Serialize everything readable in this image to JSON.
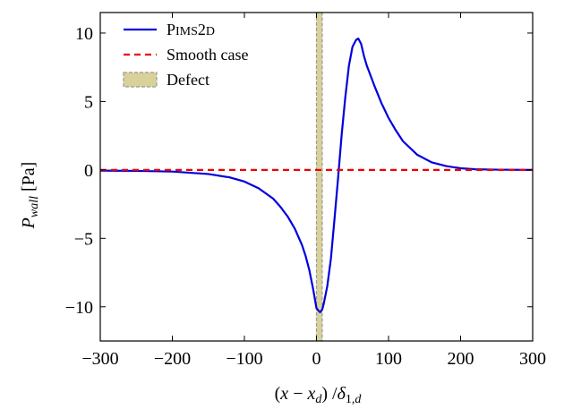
{
  "chart_data": {
    "type": "line",
    "xlabel": "(x − x_d) / δ_1,d",
    "ylabel": "P_wall [Pa]",
    "xlim": [
      -300,
      300
    ],
    "ylim": [
      -12.5,
      11.5
    ],
    "xticks": [
      -300,
      -200,
      -100,
      0,
      100,
      200,
      300
    ],
    "yticks": [
      -10,
      -5,
      0,
      5,
      10
    ],
    "xtick_labels": [
      "−300",
      "−200",
      "−100",
      "0",
      "100",
      "200",
      "300"
    ],
    "ytick_labels": [
      "−10",
      "−5",
      "0",
      "5",
      "10"
    ],
    "grid": false,
    "legend_position": "top-left",
    "defect_region": {
      "x0": 0,
      "x1": 8,
      "color": "#d8d29a",
      "label": "Defect"
    },
    "series": [
      {
        "name": "PIMS2D",
        "style": "solid",
        "color": "#0000dd",
        "x": [
          -300,
          -250,
          -200,
          -150,
          -120,
          -100,
          -80,
          -60,
          -50,
          -40,
          -30,
          -20,
          -15,
          -10,
          -5,
          0,
          3,
          5,
          8,
          10,
          15,
          20,
          25,
          30,
          35,
          40,
          45,
          50,
          55,
          58,
          62,
          66,
          70,
          80,
          90,
          100,
          110,
          120,
          140,
          160,
          180,
          200,
          220,
          250,
          300
        ],
        "y": [
          -0.05,
          -0.07,
          -0.12,
          -0.3,
          -0.55,
          -0.85,
          -1.35,
          -2.1,
          -2.7,
          -3.4,
          -4.3,
          -5.5,
          -6.3,
          -7.3,
          -8.6,
          -10.1,
          -10.3,
          -10.4,
          -10.2,
          -9.8,
          -8.5,
          -6.5,
          -3.6,
          -0.6,
          2.6,
          5.3,
          7.6,
          9.0,
          9.5,
          9.6,
          9.2,
          8.3,
          7.6,
          6.2,
          4.9,
          3.8,
          2.9,
          2.1,
          1.1,
          0.55,
          0.28,
          0.12,
          0.05,
          0.02,
          0.0
        ]
      },
      {
        "name": "Smooth case",
        "style": "dashed",
        "color": "#ee0000",
        "x": [
          -300,
          300
        ],
        "y": [
          0,
          0
        ]
      }
    ],
    "legend": [
      {
        "label_main": "P",
        "label_sc": "IMS",
        "label_tail": "2",
        "label_sc2": "D"
      },
      {
        "label": "Smooth case"
      },
      {
        "label": "Defect"
      }
    ]
  }
}
